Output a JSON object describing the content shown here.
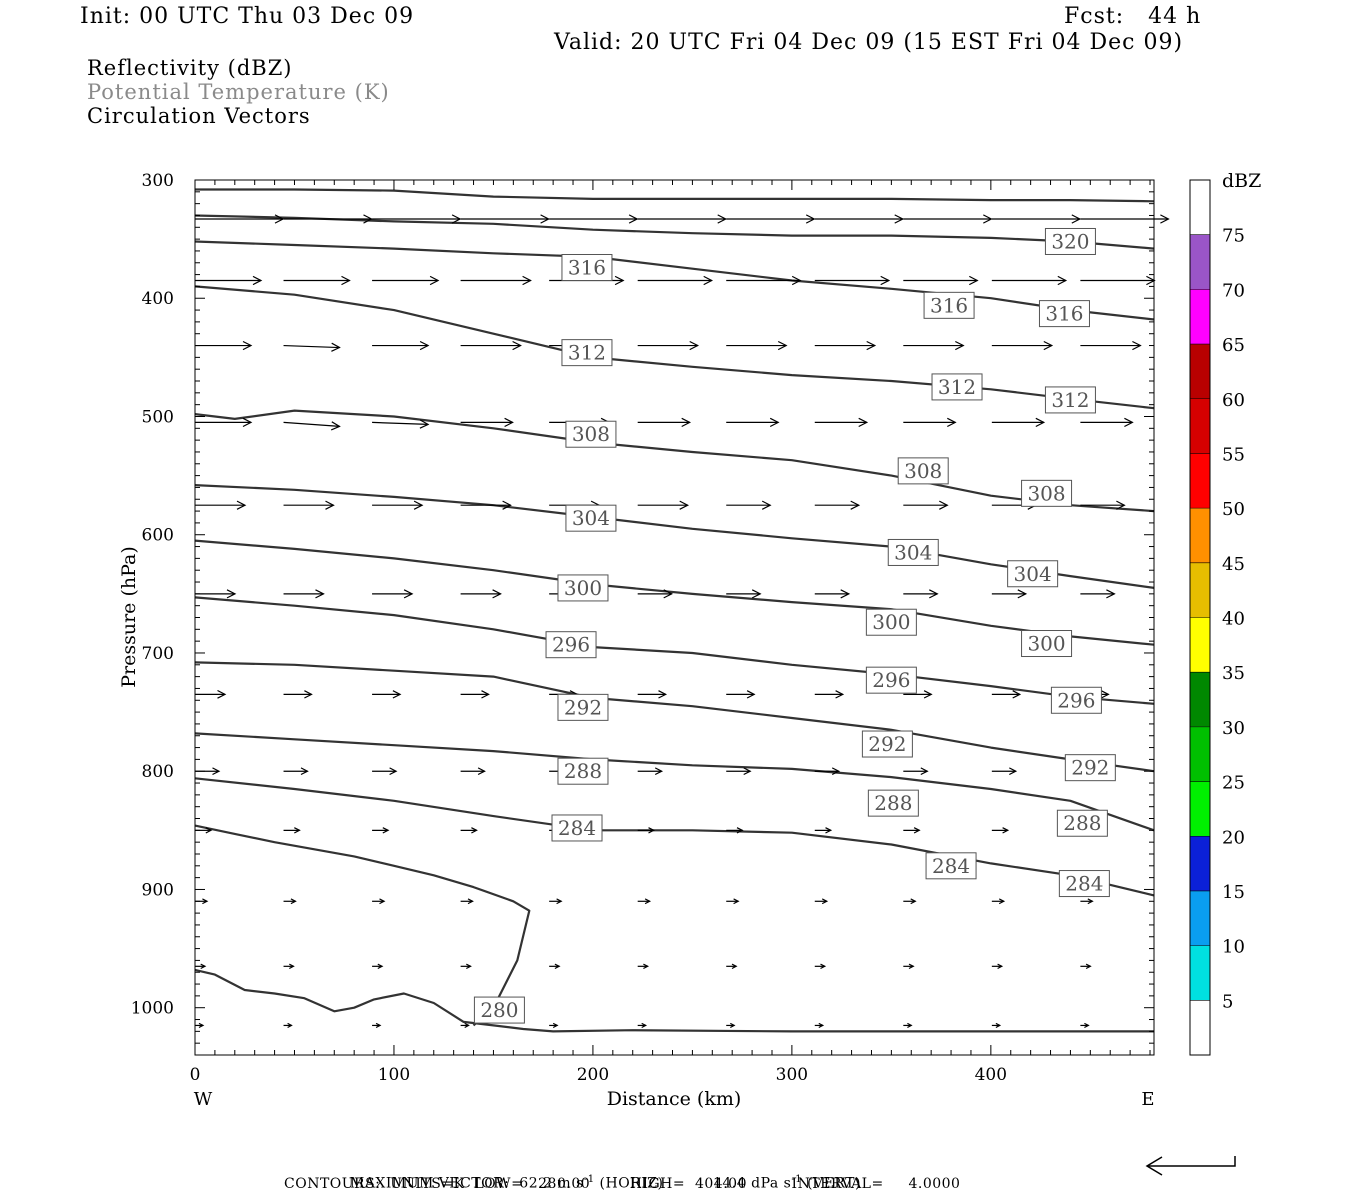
{
  "header": {
    "init": "Init: 00 UTC Thu 03 Dec 09",
    "fcst": "Fcst:   44 h",
    "valid": "Valid: 20 UTC Fri 04 Dec 09 (15 EST Fri 04 Dec 09)"
  },
  "fields": {
    "reflectivity": "Reflectivity (dBZ)",
    "theta": "Potential Temperature (K)",
    "vectors": "Circulation Vectors"
  },
  "footer": {
    "max_vector_label": "MAXIMUM VECTOR:",
    "max_vector_horiz_value": "62.2 m s",
    "horiz_exp": "-1",
    "horiz_tag": "(HORIZ)",
    "max_vector_vert_value": "14.4 dPa s",
    "vert_exp": "-1",
    "vert_tag": "(VERT)",
    "contours": "CONTOURS:  UNITS=K  LOW=   280.00        HIGH=  404.00         INTERVAL=     4.0000"
  },
  "chart_data": {
    "type": "contour",
    "xlabel": "Distance (km)",
    "ylabel": "Pressure (hPa)",
    "xlim": [
      0,
      482
    ],
    "ylim": [
      1040,
      300
    ],
    "x_ticks": [
      0,
      100,
      200,
      300,
      400
    ],
    "y_ticks": [
      300,
      400,
      500,
      600,
      700,
      800,
      900,
      1000
    ],
    "x_end_labels": {
      "left": "W",
      "right": "E"
    },
    "contour_label_values": [
      280,
      284,
      288,
      292,
      296,
      300,
      304,
      308,
      312,
      316,
      320
    ],
    "contours": [
      {
        "level": 280,
        "x": [
          0,
          10,
          25,
          40,
          55,
          70,
          80,
          90,
          105,
          120,
          135,
          150,
          165,
          180,
          220,
          300,
          400,
          482
        ],
        "p": [
          968,
          972,
          985,
          988,
          992,
          1003,
          1000,
          993,
          988,
          996,
          1012,
          1015,
          1018,
          1020,
          1019,
          1020,
          1020,
          1020
        ]
      },
      {
        "level": 284,
        "x": [
          0,
          20,
          40,
          60,
          80,
          100,
          120,
          140,
          160,
          168,
          162,
          150,
          140
        ],
        "p": [
          846,
          853,
          860,
          866,
          872,
          880,
          888,
          898,
          910,
          918,
          960,
          1000,
          1015
        ]
      },
      {
        "level": 284,
        "x": [
          0,
          50,
          100,
          150,
          200,
          250,
          300,
          350,
          400,
          440,
          482
        ],
        "p": [
          806,
          815,
          825,
          838,
          850,
          850,
          852,
          862,
          878,
          888,
          905
        ]
      },
      {
        "level": 288,
        "x": [
          0,
          50,
          100,
          150,
          200,
          250,
          300,
          350,
          400,
          440,
          482
        ],
        "p": [
          768,
          773,
          778,
          783,
          790,
          795,
          798,
          805,
          815,
          825,
          850
        ]
      },
      {
        "level": 292,
        "x": [
          0,
          50,
          100,
          150,
          200,
          250,
          300,
          350,
          400,
          440,
          482
        ],
        "p": [
          708,
          710,
          715,
          720,
          738,
          745,
          755,
          765,
          780,
          790,
          800
        ]
      },
      {
        "level": 296,
        "x": [
          0,
          50,
          100,
          150,
          200,
          250,
          300,
          350,
          400,
          440,
          482
        ],
        "p": [
          653,
          660,
          668,
          680,
          695,
          700,
          710,
          718,
          728,
          737,
          743
        ]
      },
      {
        "level": 300,
        "x": [
          0,
          50,
          100,
          150,
          200,
          250,
          300,
          350,
          400,
          440,
          482
        ],
        "p": [
          605,
          612,
          620,
          630,
          642,
          650,
          657,
          663,
          677,
          686,
          693
        ]
      },
      {
        "level": 304,
        "x": [
          0,
          50,
          100,
          150,
          200,
          250,
          300,
          350,
          400,
          440,
          482
        ],
        "p": [
          558,
          562,
          568,
          575,
          585,
          595,
          603,
          610,
          625,
          635,
          645
        ]
      },
      {
        "level": 308,
        "x": [
          0,
          20,
          50,
          100,
          150,
          200,
          250,
          300,
          350,
          400,
          440,
          482
        ],
        "p": [
          498,
          502,
          495,
          500,
          510,
          522,
          530,
          537,
          550,
          567,
          575,
          580
        ]
      },
      {
        "level": 312,
        "x": [
          0,
          50,
          100,
          150,
          200,
          250,
          300,
          350,
          400,
          440,
          482
        ],
        "p": [
          390,
          397,
          410,
          430,
          450,
          458,
          465,
          470,
          477,
          485,
          493
        ]
      },
      {
        "level": 316,
        "x": [
          0,
          50,
          100,
          150,
          200,
          250,
          300,
          350,
          400,
          440,
          482
        ],
        "p": [
          352,
          355,
          358,
          362,
          365,
          375,
          385,
          392,
          400,
          410,
          418
        ]
      },
      {
        "level": 320,
        "x": [
          0,
          50,
          100,
          150,
          200,
          250,
          300,
          350,
          400,
          440,
          482
        ],
        "p": [
          330,
          332,
          335,
          337,
          342,
          345,
          347,
          347,
          349,
          352,
          358
        ]
      },
      {
        "level": 324,
        "x": [
          0,
          50,
          100,
          150,
          200,
          250,
          300,
          350,
          400,
          440,
          482
        ],
        "p": [
          308,
          308,
          309,
          314,
          316,
          316,
          316,
          316,
          317,
          317,
          318
        ]
      }
    ],
    "contour_labels": [
      {
        "text": "280",
        "x": 153,
        "p": 1002
      },
      {
        "text": "284",
        "x": 192,
        "p": 848
      },
      {
        "text": "284",
        "x": 380,
        "p": 880
      },
      {
        "text": "284",
        "x": 447,
        "p": 895
      },
      {
        "text": "288",
        "x": 195,
        "p": 800
      },
      {
        "text": "288",
        "x": 351,
        "p": 827
      },
      {
        "text": "288",
        "x": 446,
        "p": 844
      },
      {
        "text": "292",
        "x": 195,
        "p": 746
      },
      {
        "text": "292",
        "x": 348,
        "p": 777
      },
      {
        "text": "292",
        "x": 450,
        "p": 797
      },
      {
        "text": "296",
        "x": 189,
        "p": 693
      },
      {
        "text": "296",
        "x": 350,
        "p": 723
      },
      {
        "text": "296",
        "x": 443,
        "p": 740
      },
      {
        "text": "300",
        "x": 195,
        "p": 645
      },
      {
        "text": "300",
        "x": 350,
        "p": 674
      },
      {
        "text": "300",
        "x": 428,
        "p": 692
      },
      {
        "text": "304",
        "x": 199,
        "p": 586
      },
      {
        "text": "304",
        "x": 361,
        "p": 615
      },
      {
        "text": "304",
        "x": 421,
        "p": 633
      },
      {
        "text": "308",
        "x": 199,
        "p": 515
      },
      {
        "text": "308",
        "x": 366,
        "p": 546
      },
      {
        "text": "308",
        "x": 428,
        "p": 565
      },
      {
        "text": "312",
        "x": 197,
        "p": 446
      },
      {
        "text": "312",
        "x": 383,
        "p": 475
      },
      {
        "text": "312",
        "x": 440,
        "p": 486
      },
      {
        "text": "316",
        "x": 197,
        "p": 374
      },
      {
        "text": "316",
        "x": 379,
        "p": 406
      },
      {
        "text": "316",
        "x": 437,
        "p": 413
      },
      {
        "text": "320",
        "x": 440,
        "p": 352
      }
    ],
    "vector_rows": [
      {
        "p": 333,
        "u": [
          44,
          44,
          44,
          44,
          44,
          44,
          44,
          44,
          44,
          44,
          44
        ],
        "w": [
          0,
          0,
          0,
          0,
          0,
          0,
          0,
          0,
          0,
          0,
          0
        ]
      },
      {
        "p": 385,
        "u": [
          33,
          33,
          33,
          35,
          37,
          37,
          37,
          37,
          37,
          37,
          37
        ],
        "w": [
          0,
          0,
          0,
          0,
          0,
          0,
          0,
          0,
          0,
          0,
          0
        ]
      },
      {
        "p": 440,
        "u": [
          28,
          28,
          28,
          30,
          30,
          30,
          30,
          30,
          30,
          30,
          30
        ],
        "w": [
          0,
          -1,
          0,
          0,
          0,
          0,
          0,
          0,
          0,
          0,
          0
        ]
      },
      {
        "p": 505,
        "u": [
          28,
          28,
          28,
          26,
          30,
          26,
          26,
          26,
          26,
          26,
          26
        ],
        "w": [
          0,
          -2,
          -1,
          0,
          0,
          0,
          0,
          0,
          0,
          0,
          0
        ]
      },
      {
        "p": 575,
        "u": [
          25,
          25,
          25,
          25,
          25,
          25,
          22,
          22,
          22,
          22,
          22
        ],
        "w": [
          0,
          0,
          0,
          0,
          0,
          0,
          0,
          0,
          0,
          0,
          0
        ]
      },
      {
        "p": 650,
        "u": [
          20,
          20,
          20,
          20,
          20,
          17,
          17,
          17,
          17,
          17,
          17
        ],
        "w": [
          0,
          0,
          0,
          0,
          0,
          0,
          0,
          0,
          0,
          0,
          0
        ]
      },
      {
        "p": 735,
        "u": [
          15,
          14,
          14,
          14,
          14,
          14,
          14,
          14,
          14,
          14,
          14
        ],
        "w": [
          0,
          0,
          0,
          0,
          0,
          0,
          0,
          0,
          0,
          0,
          0
        ]
      },
      {
        "p": 800,
        "u": [
          12,
          12,
          12,
          12,
          12,
          12,
          12,
          12,
          12,
          12,
          12
        ],
        "w": [
          0,
          0,
          0,
          0,
          0,
          0,
          0,
          0,
          0,
          0,
          0
        ]
      },
      {
        "p": 850,
        "u": [
          8,
          8,
          8,
          8,
          8,
          8,
          8,
          8,
          8,
          8,
          8
        ],
        "w": [
          0,
          0,
          0,
          0,
          0,
          0,
          0,
          0,
          0,
          0,
          0
        ]
      },
      {
        "p": 910,
        "u": [
          6,
          6,
          6,
          6,
          6,
          6,
          6,
          6,
          6,
          6,
          6
        ],
        "w": [
          0,
          0,
          0,
          0,
          0,
          0,
          0,
          0,
          0,
          0,
          0
        ]
      },
      {
        "p": 965,
        "u": [
          5,
          5,
          5,
          5,
          5,
          5,
          5,
          5,
          5,
          5,
          5
        ],
        "w": [
          0,
          0,
          0,
          0,
          0,
          0,
          0,
          0,
          0,
          0,
          0
        ]
      },
      {
        "p": 1015,
        "u": [
          4,
          4,
          4,
          4,
          4,
          4,
          4,
          4,
          4,
          4,
          4
        ],
        "w": [
          0,
          0,
          0,
          0,
          0,
          0,
          0,
          0,
          0,
          0,
          0
        ]
      }
    ],
    "colorbar": {
      "title": "dBZ",
      "levels": [
        5,
        10,
        15,
        20,
        25,
        30,
        35,
        40,
        45,
        50,
        55,
        60,
        65,
        70,
        75
      ],
      "colors": [
        "#ffffff",
        "#00e0e0",
        "#0a9ef0",
        "#0b20d8",
        "#00f000",
        "#00c000",
        "#008800",
        "#ffff00",
        "#e6be00",
        "#ff9000",
        "#ff0000",
        "#d60000",
        "#b80000",
        "#ff00ff",
        "#9a55c8",
        "#ffffff"
      ]
    }
  }
}
